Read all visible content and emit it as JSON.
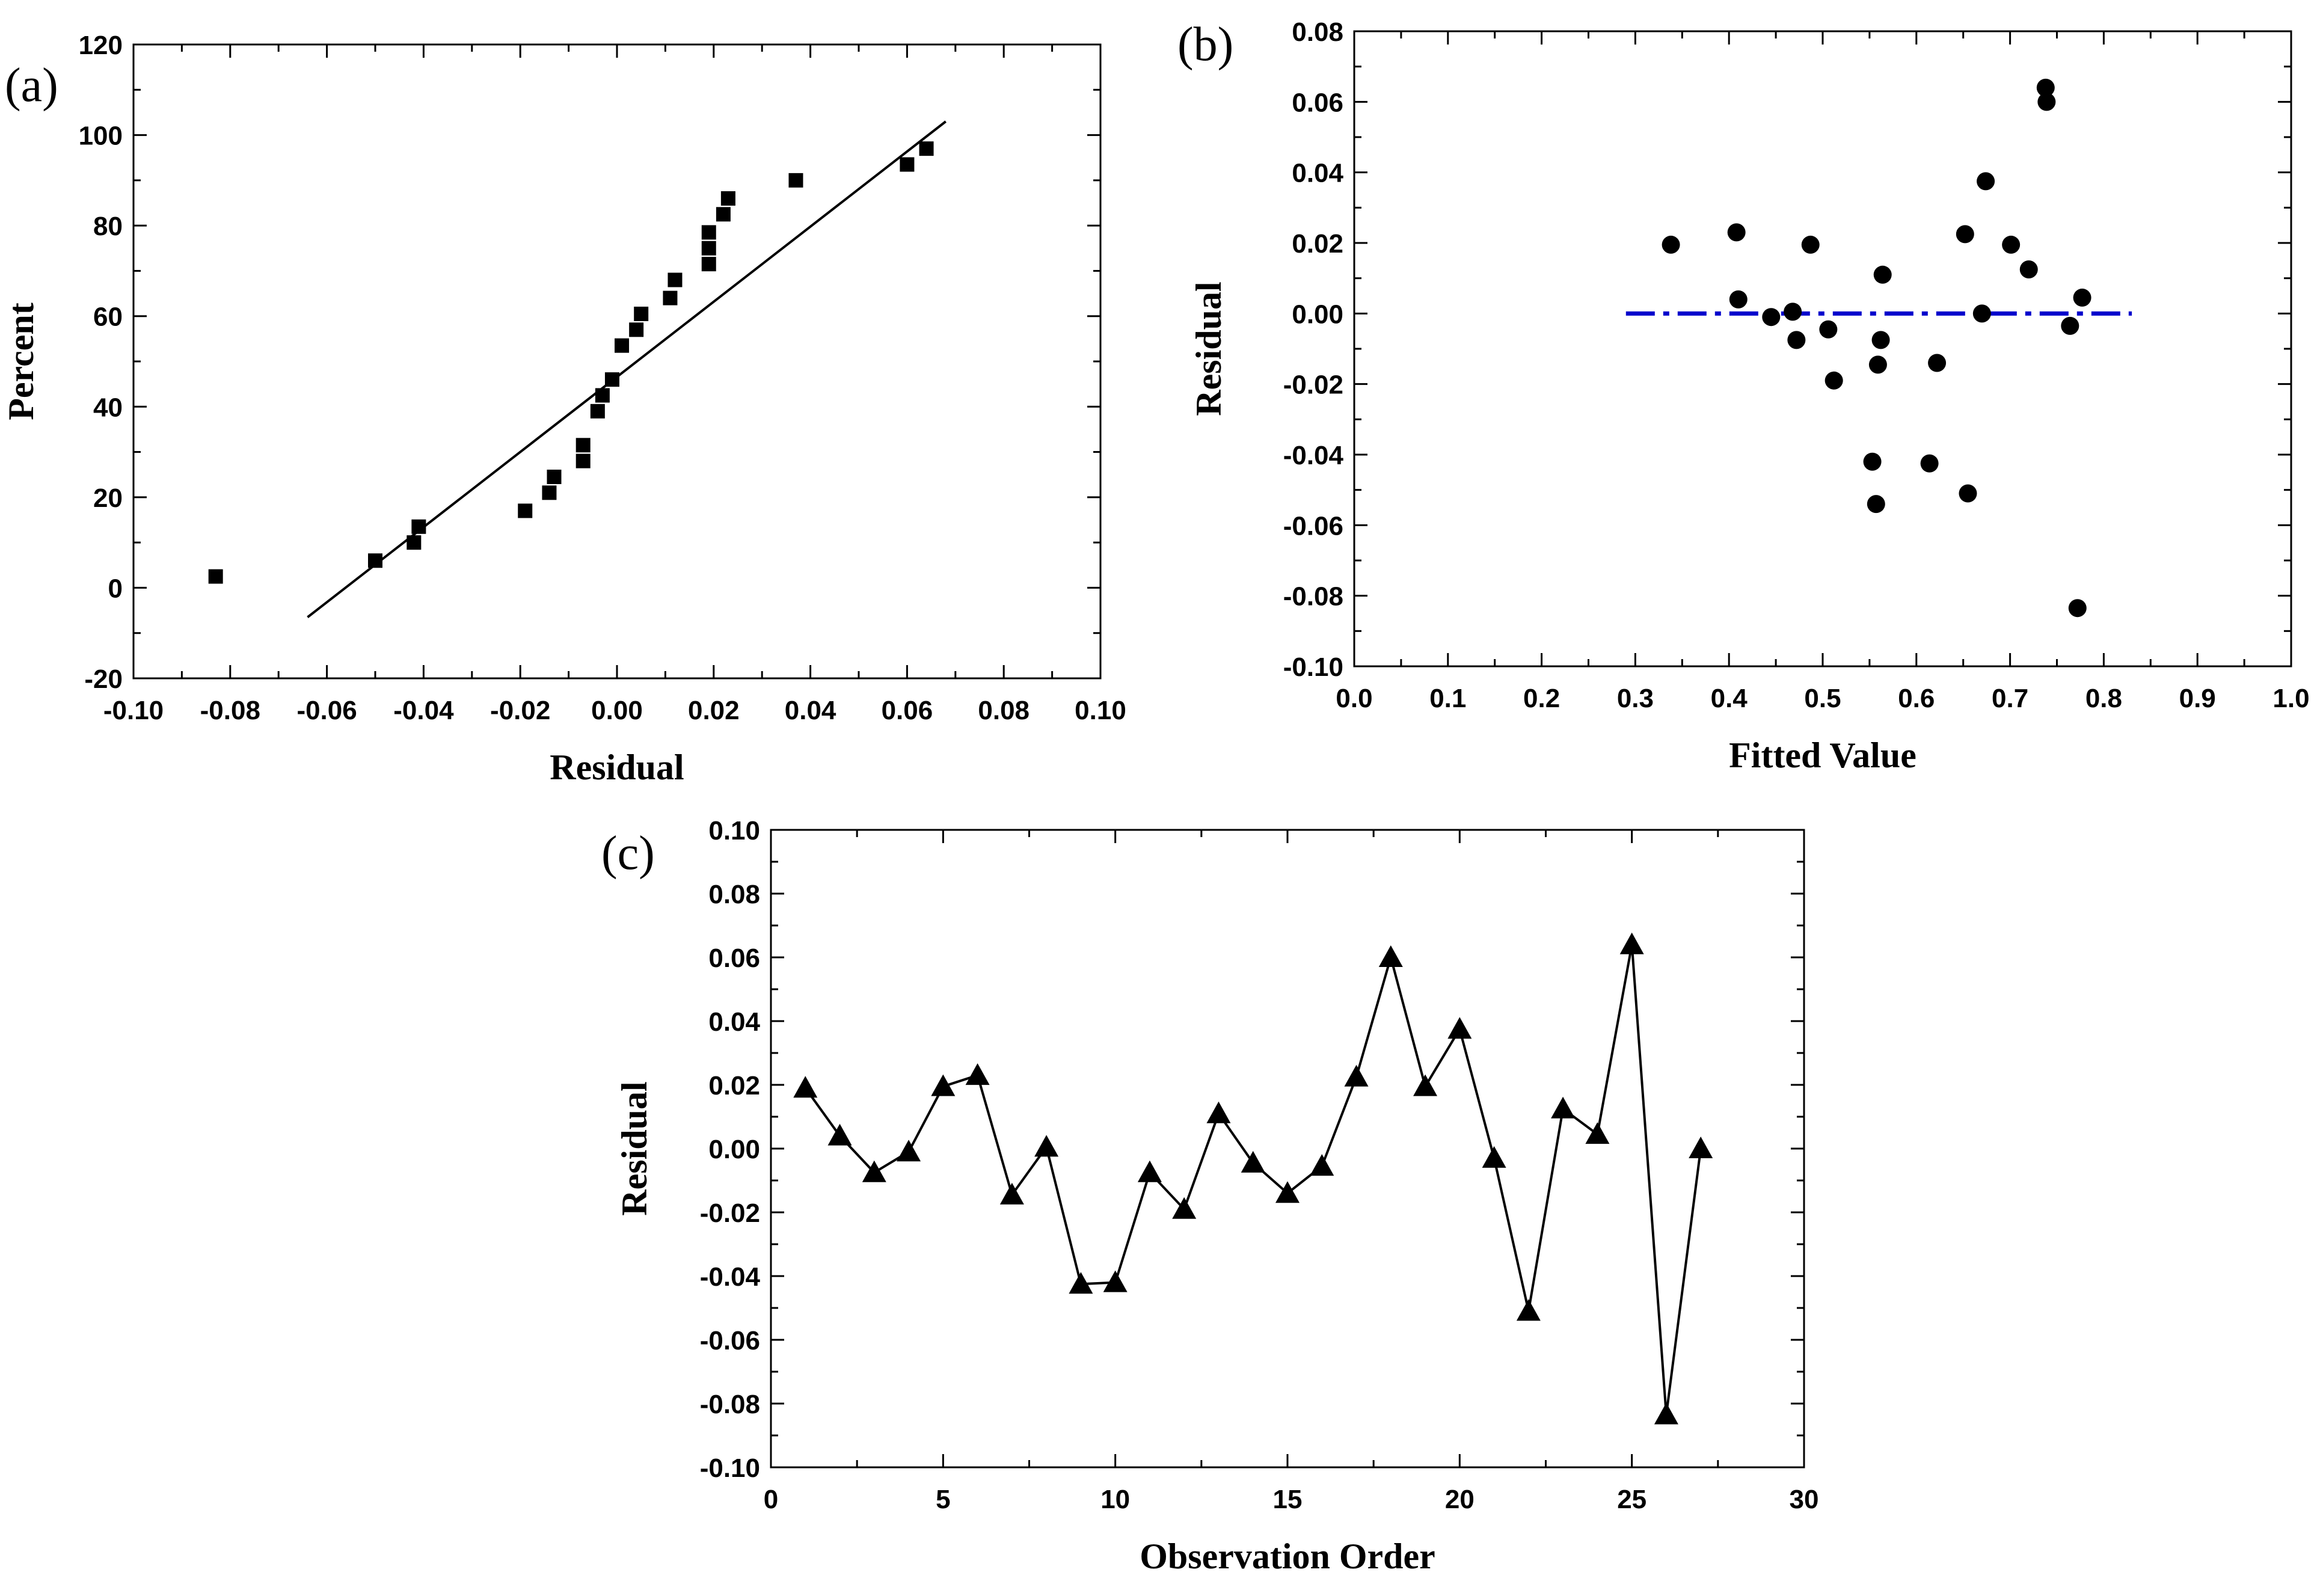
{
  "chart_data": [
    {
      "id": "a",
      "panel_label": "(a)",
      "type": "scatter",
      "marker": "square",
      "title": "",
      "xlabel": "Residual",
      "ylabel": "Percent",
      "xlim": [
        -0.1,
        0.1
      ],
      "ylim": [
        -20,
        120
      ],
      "xticks": [
        -0.1,
        -0.08,
        -0.06,
        -0.04,
        -0.02,
        0.0,
        0.02,
        0.04,
        0.06,
        0.08,
        0.1
      ],
      "yticks": [
        -20,
        0,
        20,
        40,
        60,
        80,
        100,
        120
      ],
      "xdecimals": 2,
      "ydecimals": 0,
      "points": [
        [
          -0.083,
          2.5
        ],
        [
          -0.05,
          6
        ],
        [
          -0.042,
          10
        ],
        [
          -0.041,
          13.5
        ],
        [
          -0.019,
          17
        ],
        [
          -0.014,
          21
        ],
        [
          -0.013,
          24.5
        ],
        [
          -0.007,
          28
        ],
        [
          -0.007,
          31.5
        ],
        [
          -0.004,
          39
        ],
        [
          -0.003,
          42.5
        ],
        [
          -0.001,
          46
        ],
        [
          0.001,
          53.5
        ],
        [
          0.004,
          57
        ],
        [
          0.005,
          60.5
        ],
        [
          0.011,
          64
        ],
        [
          0.012,
          68
        ],
        [
          0.019,
          71.5
        ],
        [
          0.019,
          75
        ],
        [
          0.019,
          78.5
        ],
        [
          0.022,
          82.5
        ],
        [
          0.023,
          86
        ],
        [
          0.037,
          90
        ],
        [
          0.06,
          93.5
        ],
        [
          0.064,
          97
        ]
      ],
      "fit_line": [
        [
          -0.064,
          -6.5
        ],
        [
          0.068,
          103
        ]
      ]
    },
    {
      "id": "b",
      "panel_label": "(b)",
      "type": "scatter",
      "marker": "circle",
      "title": "",
      "xlabel": "Fitted Value",
      "ylabel": "Residual",
      "xlim": [
        0.0,
        1.0
      ],
      "ylim": [
        -0.1,
        0.08
      ],
      "xticks": [
        0.0,
        0.1,
        0.2,
        0.3,
        0.4,
        0.5,
        0.6,
        0.7,
        0.8,
        0.9,
        1.0
      ],
      "yticks": [
        -0.1,
        -0.08,
        -0.06,
        -0.04,
        -0.02,
        0.0,
        0.02,
        0.04,
        0.06,
        0.08
      ],
      "xdecimals": 1,
      "ydecimals": 2,
      "points": [
        [
          0.338,
          0.0195
        ],
        [
          0.408,
          0.023
        ],
        [
          0.41,
          0.004
        ],
        [
          0.445,
          -0.001
        ],
        [
          0.468,
          0.0005
        ],
        [
          0.472,
          -0.0075
        ],
        [
          0.487,
          0.0195
        ],
        [
          0.506,
          -0.0045
        ],
        [
          0.512,
          -0.019
        ],
        [
          0.553,
          -0.042
        ],
        [
          0.557,
          -0.054
        ],
        [
          0.559,
          -0.0145
        ],
        [
          0.562,
          -0.0075
        ],
        [
          0.564,
          0.011
        ],
        [
          0.614,
          -0.0425
        ],
        [
          0.622,
          -0.014
        ],
        [
          0.652,
          0.0225
        ],
        [
          0.655,
          -0.051
        ],
        [
          0.67,
          0.0
        ],
        [
          0.674,
          0.0375
        ],
        [
          0.701,
          0.0195
        ],
        [
          0.72,
          0.0125
        ],
        [
          0.738,
          0.064
        ],
        [
          0.739,
          0.06
        ],
        [
          0.764,
          -0.0035
        ],
        [
          0.772,
          -0.0835
        ],
        [
          0.777,
          0.0045
        ]
      ],
      "reference_line": {
        "y": 0.0,
        "x_range": [
          0.29,
          0.83
        ],
        "color": "#0000cc",
        "style": "dash-dot"
      }
    },
    {
      "id": "c",
      "panel_label": "(c)",
      "type": "line",
      "marker": "triangle",
      "title": "",
      "xlabel": "Observation Order",
      "ylabel": "Residual",
      "xlim": [
        0,
        30
      ],
      "ylim": [
        -0.1,
        0.1
      ],
      "xticks": [
        0,
        5,
        10,
        15,
        20,
        25,
        30
      ],
      "yticks": [
        -0.1,
        -0.08,
        -0.06,
        -0.04,
        -0.02,
        0.0,
        0.02,
        0.04,
        0.06,
        0.08,
        0.1
      ],
      "xdecimals": 0,
      "ydecimals": 2,
      "x": [
        1,
        2,
        3,
        4,
        5,
        6,
        7,
        8,
        9,
        10,
        11,
        12,
        13,
        14,
        15,
        16,
        17,
        18,
        19,
        20,
        21,
        22,
        23,
        24,
        25,
        26,
        27
      ],
      "values": [
        0.019,
        0.004,
        -0.0075,
        -0.001,
        0.0195,
        0.023,
        -0.0145,
        0.0005,
        -0.0425,
        -0.042,
        -0.0075,
        -0.019,
        0.011,
        -0.0045,
        -0.014,
        -0.0055,
        0.0225,
        0.06,
        0.0195,
        0.0375,
        -0.003,
        -0.051,
        0.0125,
        0.0045,
        0.064,
        -0.0835,
        0.0
      ]
    }
  ]
}
